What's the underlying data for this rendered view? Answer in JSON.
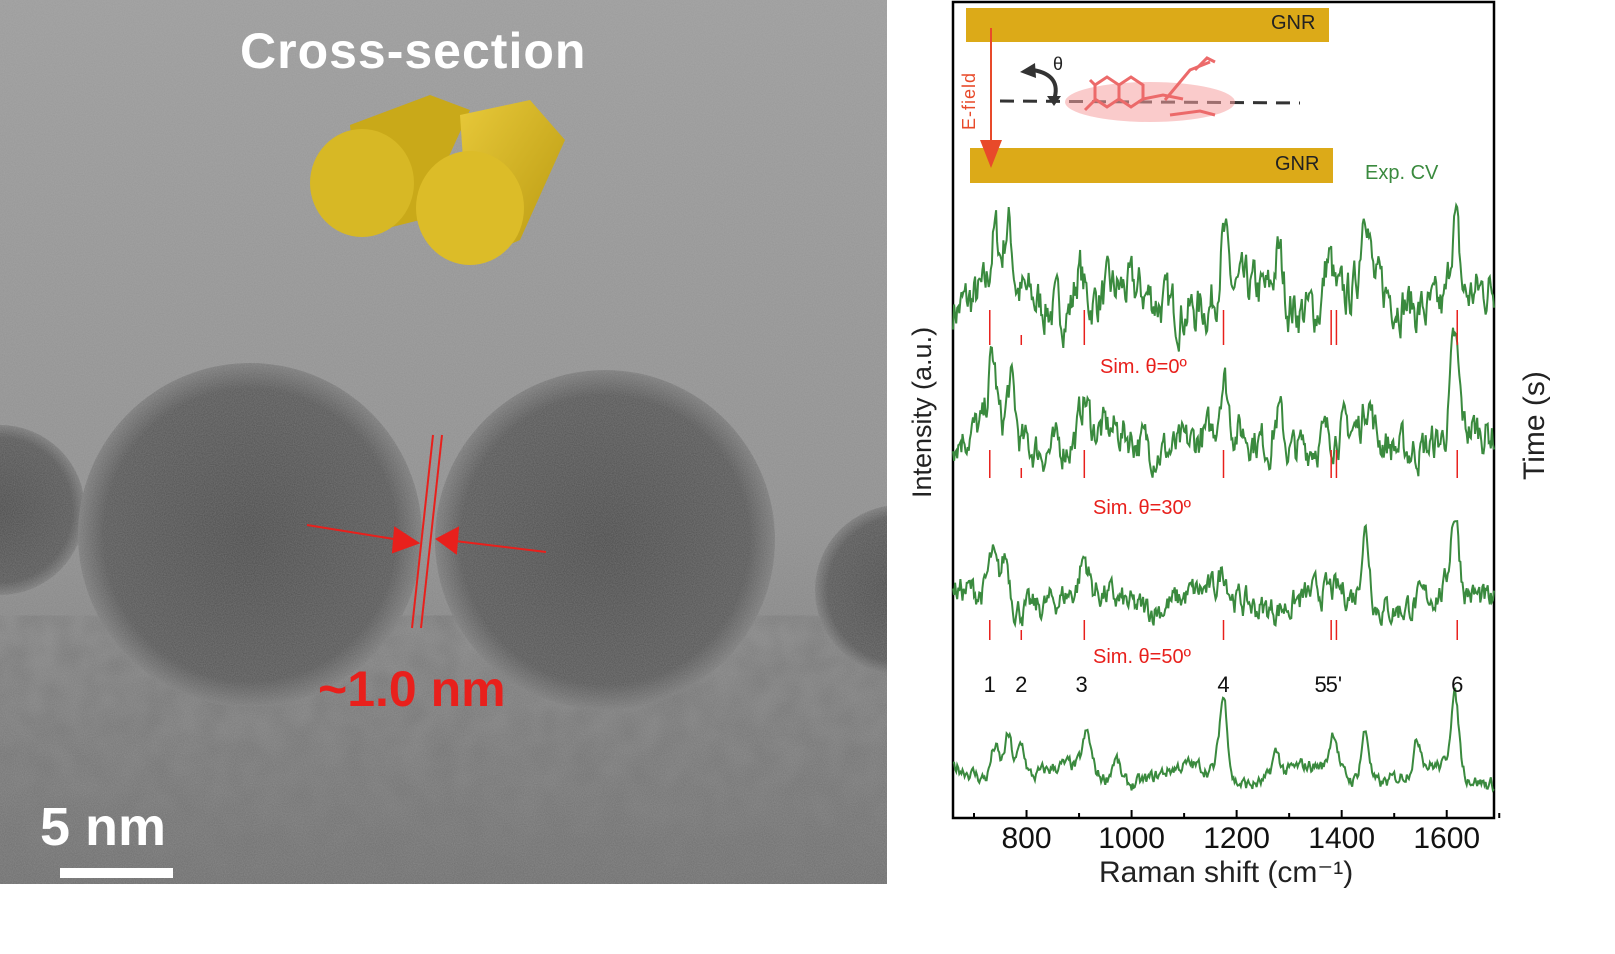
{
  "tem_panel": {
    "title": "Cross-section",
    "gap_label": "~1.0 nm",
    "scale_bar_label": "5 nm"
  },
  "schematic": {
    "electrode_top": "GNR",
    "electrode_bottom": "GNR",
    "field_label": "E-field",
    "angle_label": "θ"
  },
  "chart_data": {
    "type": "line",
    "xlabel": "Raman shift (cm⁻¹)",
    "ylabel": "Intensity (a.u.)",
    "right_label": "Time (s)",
    "xlim": [
      660,
      1690
    ],
    "xticks": [
      800,
      1000,
      1200,
      1400,
      1600
    ],
    "grid": false,
    "series": [
      {
        "name": "Exp. CV",
        "color": "#3a8a3e",
        "peaks": [
          [
            740,
            0.6
          ],
          [
            765,
            0.7
          ],
          [
            900,
            0.4
          ],
          [
            1175,
            0.6
          ],
          [
            1280,
            0.5
          ],
          [
            1375,
            0.5
          ],
          [
            1445,
            1.0
          ],
          [
            1615,
            0.9
          ]
        ],
        "noise": 0.35
      },
      {
        "name": "Sim. θ=0º",
        "color": "#3a8a3e",
        "peaks": [
          [
            735,
            0.8
          ],
          [
            770,
            0.6
          ],
          [
            910,
            0.4
          ],
          [
            1175,
            0.6
          ],
          [
            1280,
            0.4
          ],
          [
            1450,
            0.4
          ],
          [
            1615,
            1.0
          ]
        ],
        "noise": 0.3
      },
      {
        "name": "Sim. θ=30º",
        "color": "#3a8a3e",
        "peaks": [
          [
            735,
            0.5
          ],
          [
            760,
            0.6
          ],
          [
            910,
            0.4
          ],
          [
            1175,
            0.3
          ],
          [
            1445,
            0.9
          ],
          [
            1615,
            1.0
          ]
        ],
        "noise": 0.25
      },
      {
        "name": "Sim. θ=50º",
        "color": "#3a8a3e",
        "peaks": [
          [
            740,
            0.45
          ],
          [
            765,
            0.6
          ],
          [
            790,
            0.45
          ],
          [
            915,
            0.45
          ],
          [
            970,
            0.3
          ],
          [
            1175,
            1.0
          ],
          [
            1275,
            0.3
          ],
          [
            1385,
            0.5
          ],
          [
            1445,
            0.65
          ],
          [
            1545,
            0.35
          ],
          [
            1615,
            0.95
          ]
        ],
        "noise": 0.12
      }
    ],
    "stick_lines": [
      730,
      790,
      910,
      1175,
      1380,
      1390,
      1620
    ],
    "peak_labels": [
      {
        "label": "1",
        "x": 730
      },
      {
        "label": "2",
        "x": 790
      },
      {
        "label": "3",
        "x": 905
      },
      {
        "label": "4",
        "x": 1175
      },
      {
        "label": "5",
        "x": 1360
      },
      {
        "label": "5'",
        "x": 1385
      },
      {
        "label": "6",
        "x": 1620
      }
    ]
  }
}
